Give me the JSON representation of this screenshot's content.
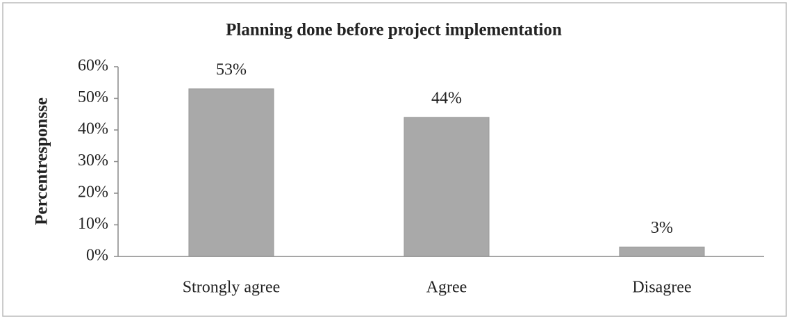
{
  "chart_data": {
    "type": "bar",
    "title": "Planning done before project implementation",
    "y_label": "Percentresponsse",
    "categories": [
      "Strongly agree",
      "Agree",
      "Disagree"
    ],
    "values": [
      53,
      44,
      3
    ],
    "value_labels": [
      "53%",
      "44%",
      "3%"
    ],
    "color": "#a9a9a9",
    "ylim": [
      0,
      60
    ],
    "yticks": [
      {
        "value": 0,
        "label": "0%"
      },
      {
        "value": 10,
        "label": "10%"
      },
      {
        "value": 20,
        "label": "20%"
      },
      {
        "value": 30,
        "label": "30%"
      },
      {
        "value": 40,
        "label": "40%"
      },
      {
        "value": 50,
        "label": "50%"
      },
      {
        "value": 60,
        "label": "60%"
      }
    ],
    "grid": false
  }
}
